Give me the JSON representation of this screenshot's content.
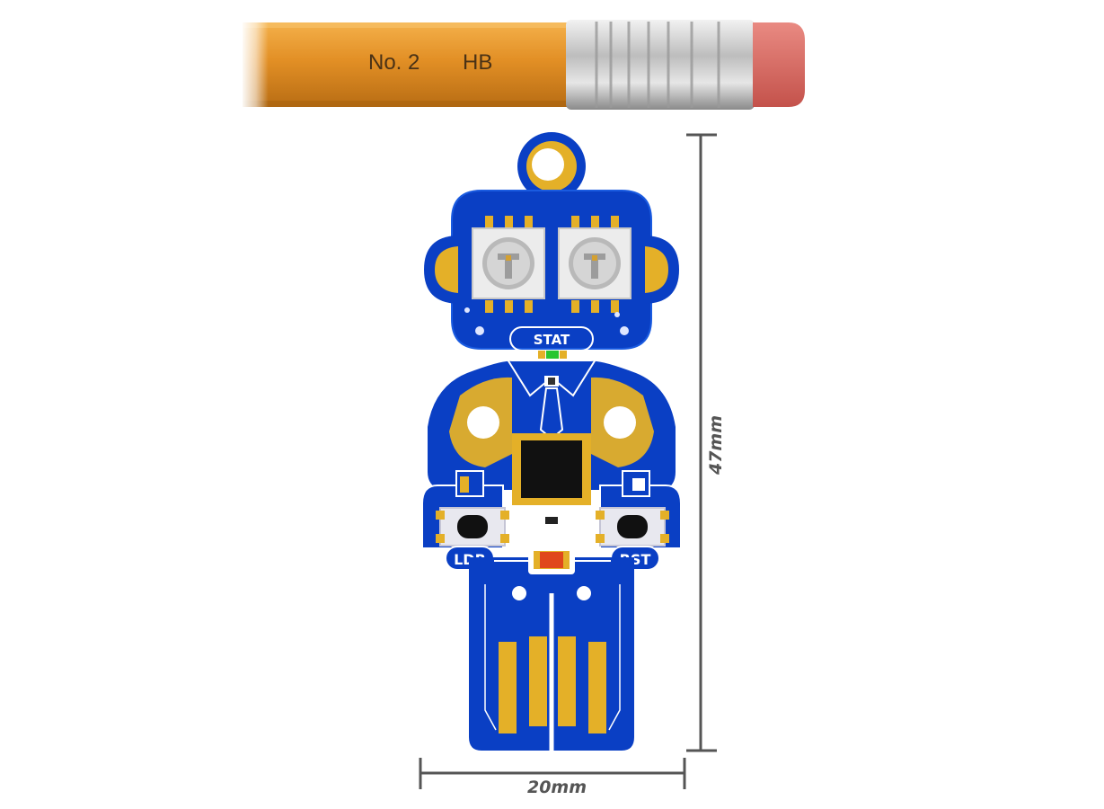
{
  "pencil": {
    "line1": "No. 2",
    "line2": "HB"
  },
  "board": {
    "silkscreen": {
      "status": "STAT",
      "left_button": "LDR",
      "right_button": "RST"
    }
  },
  "dimensions": {
    "width": "20mm",
    "height": "47mm"
  },
  "colors": {
    "pcb_blue": "#0a3fc4",
    "gold": "#e4b028",
    "silkscreen": "#ffffff",
    "pencil_body": "#e7952a",
    "eraser": "#d9665f",
    "dimension_line": "#555555"
  }
}
